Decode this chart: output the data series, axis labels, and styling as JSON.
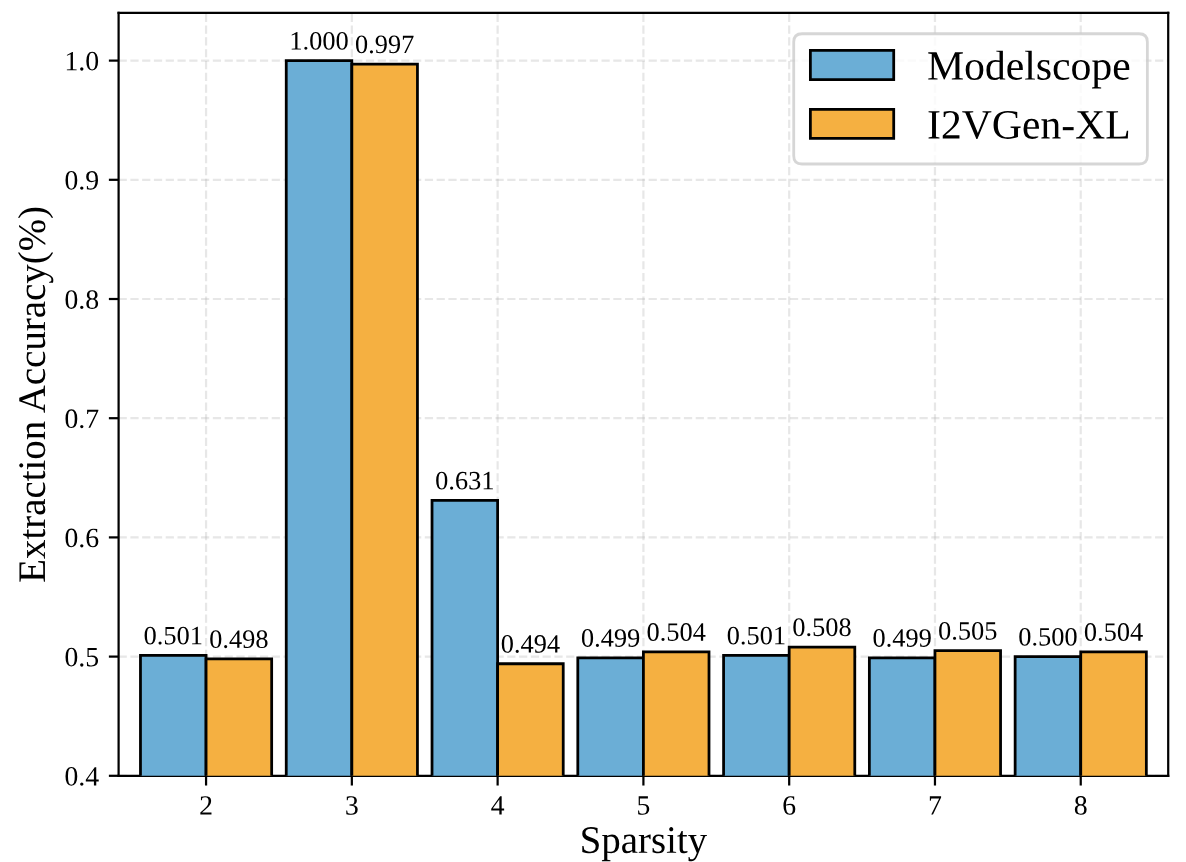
{
  "chart_data": {
    "type": "bar",
    "xlabel": "Sparsity",
    "ylabel": "Extraction Accuracy(%)",
    "categories": [
      "2",
      "3",
      "4",
      "5",
      "6",
      "7",
      "8"
    ],
    "series": [
      {
        "name": "Modelscope",
        "color": "#6baed6",
        "values": [
          0.501,
          1.0,
          0.631,
          0.499,
          0.501,
          0.499,
          0.5
        ],
        "value_labels": [
          "0.501",
          "1.000",
          "0.631",
          "0.499",
          "0.501",
          "0.499",
          "0.500"
        ]
      },
      {
        "name": "I2VGen-XL",
        "color": "#f5b041",
        "values": [
          0.498,
          0.997,
          0.494,
          0.504,
          0.508,
          0.505,
          0.504
        ],
        "value_labels": [
          "0.498",
          "0.997",
          "0.494",
          "0.504",
          "0.508",
          "0.505",
          "0.504"
        ]
      }
    ],
    "ylim": [
      0.4,
      1.04
    ],
    "yticks": [
      {
        "value": 0.4,
        "label": "0.4"
      },
      {
        "value": 0.5,
        "label": "0.5"
      },
      {
        "value": 0.6,
        "label": "0.6"
      },
      {
        "value": 0.7,
        "label": "0.7"
      },
      {
        "value": 0.8,
        "label": "0.8"
      },
      {
        "value": 0.9,
        "label": "0.9"
      },
      {
        "value": 1.0,
        "label": "1.0"
      }
    ],
    "grid": true,
    "legend": "top right"
  }
}
